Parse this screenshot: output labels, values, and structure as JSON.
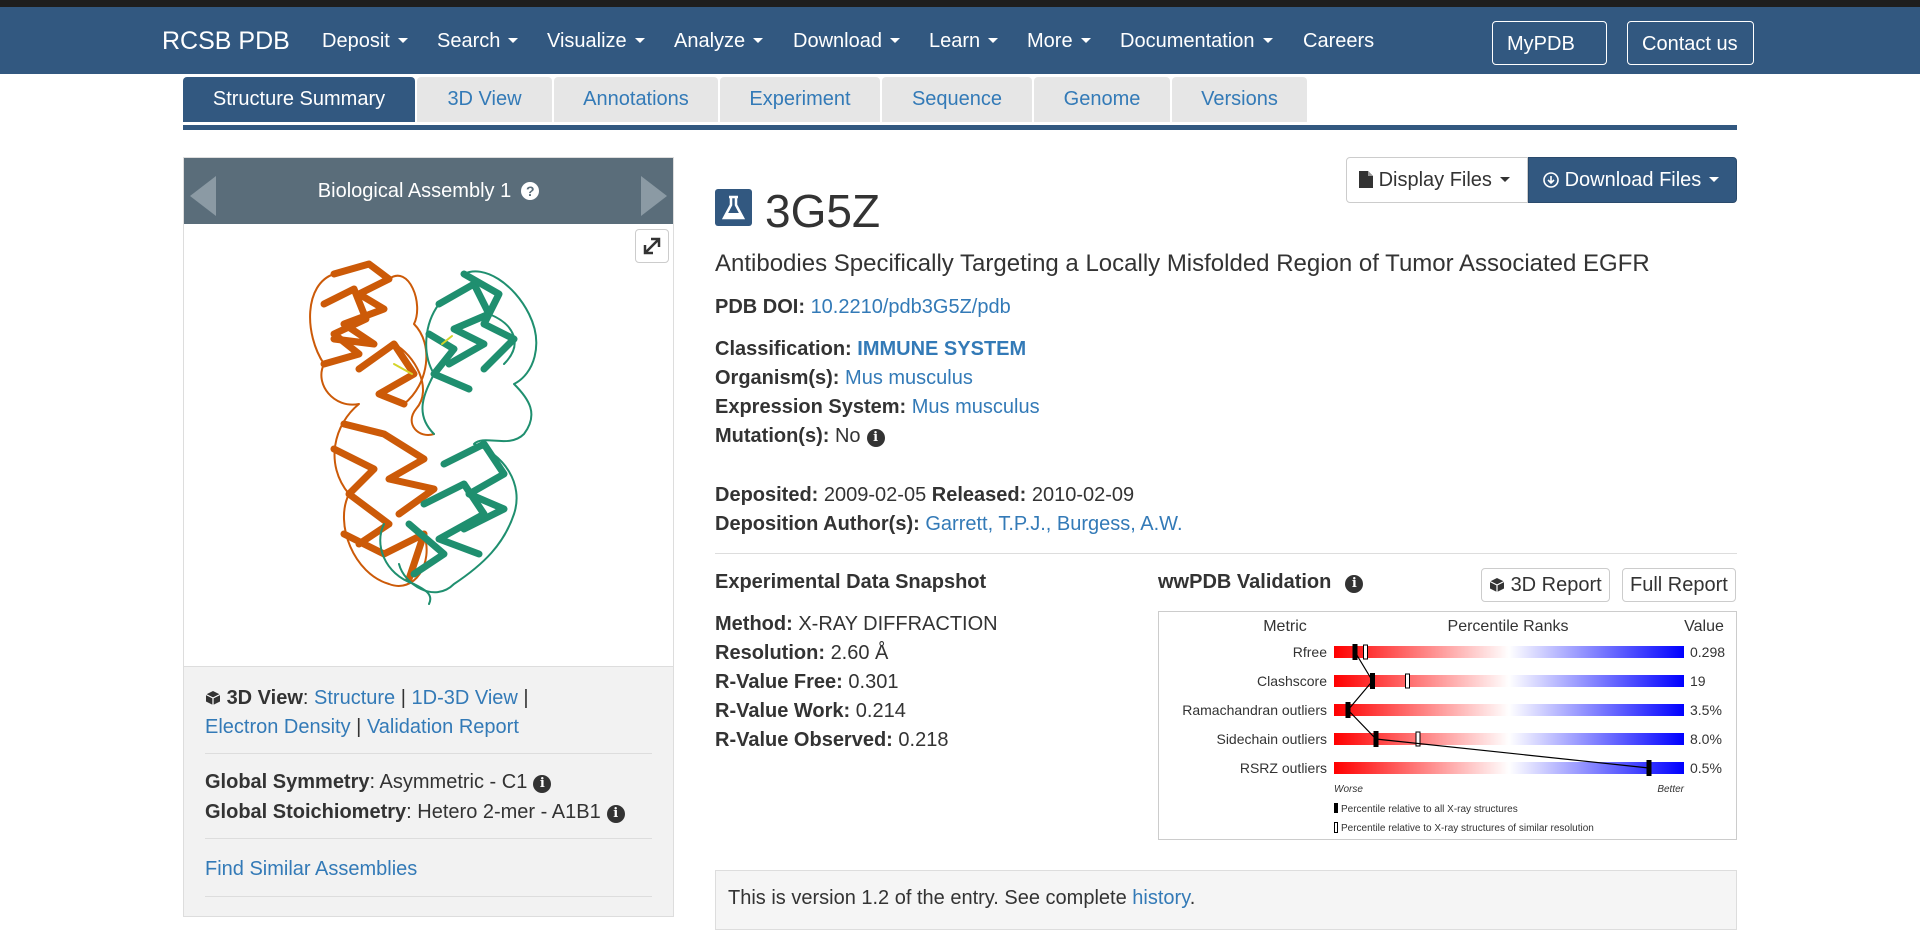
{
  "nav": {
    "brand": "RCSB PDB",
    "items": [
      "Deposit",
      "Search",
      "Visualize",
      "Analyze",
      "Download",
      "Learn",
      "More",
      "Documentation",
      "Careers"
    ],
    "mypdb": "MyPDB",
    "contact": "Contact us"
  },
  "tabs": [
    "Structure Summary",
    "3D View",
    "Annotations",
    "Experiment",
    "Sequence",
    "Genome",
    "Versions"
  ],
  "assembly": {
    "title": "Biological Assembly 1"
  },
  "left": {
    "view_label": "3D View",
    "links1": [
      "Structure",
      "1D-3D View"
    ],
    "links2": [
      "Electron Density",
      "Validation Report"
    ],
    "global_symmetry_label": "Global Symmetry",
    "global_symmetry_value": "Asymmetric - C1",
    "global_stoich_label": "Global Stoichiometry",
    "global_stoich_value": "Hetero 2-mer - A1B1",
    "find_similar": "Find Similar Assemblies"
  },
  "buttons": {
    "display_files": "Display Files",
    "download_files": "Download Files"
  },
  "entry": {
    "id": "3G5Z",
    "title": "Antibodies Specifically Targeting a Locally Misfolded Region of Tumor Associated EGFR",
    "doi_label": "PDB DOI:",
    "doi": "10.2210/pdb3G5Z/pdb",
    "classification_label": "Classification:",
    "classification": "IMMUNE SYSTEM",
    "organism_label": "Organism(s):",
    "organism": "Mus musculus",
    "expression_label": "Expression System:",
    "expression": "Mus musculus",
    "mutation_label": "Mutation(s):",
    "mutation": "No",
    "deposited_label": "Deposited:",
    "deposited": "2009-02-05",
    "released_label": "Released:",
    "released": "2010-02-09",
    "authors_label": "Deposition Author(s):",
    "author1": "Garrett, T.P.J.,",
    "author2": "Burgess, A.W."
  },
  "snapshot": {
    "heading": "Experimental Data Snapshot",
    "method_label": "Method:",
    "method": "X-RAY DIFFRACTION",
    "resolution_label": "Resolution:",
    "resolution": "2.60 Å",
    "rfree_label": "R-Value Free:",
    "rfree": "0.301",
    "rwork_label": "R-Value Work:",
    "rwork": "0.214",
    "robs_label": "R-Value Observed:",
    "robs": "0.218"
  },
  "validation": {
    "heading": "wwPDB Validation",
    "report3d": "3D Report",
    "full_report": "Full Report",
    "col_metric": "Metric",
    "col_percentile": "Percentile Ranks",
    "col_value": "Value",
    "worse": "Worse",
    "better": "Better",
    "legend_all": "Percentile relative to all X-ray structures",
    "legend_similar": "Percentile relative to X-ray structures of similar resolution",
    "metrics": [
      {
        "name": "Rfree",
        "value": "0.298",
        "pct_all": 6,
        "pct_similar": 9
      },
      {
        "name": "Clashscore",
        "value": "19",
        "pct_all": 11,
        "pct_similar": 21
      },
      {
        "name": "Ramachandran outliers",
        "value": "3.5%",
        "pct_all": 4,
        "pct_similar": 4
      },
      {
        "name": "Sidechain outliers",
        "value": "8.0%",
        "pct_all": 12,
        "pct_similar": 24
      },
      {
        "name": "RSRZ outliers",
        "value": "0.5%",
        "pct_all": 90,
        "pct_similar": 90
      }
    ],
    "colors": {
      "worse": "#ff0000",
      "mid": "#ffffff",
      "better": "#0000ff"
    }
  },
  "version_note": {
    "text": "This is version 1.2 of the entry. See complete",
    "link": "history",
    "end": "."
  }
}
